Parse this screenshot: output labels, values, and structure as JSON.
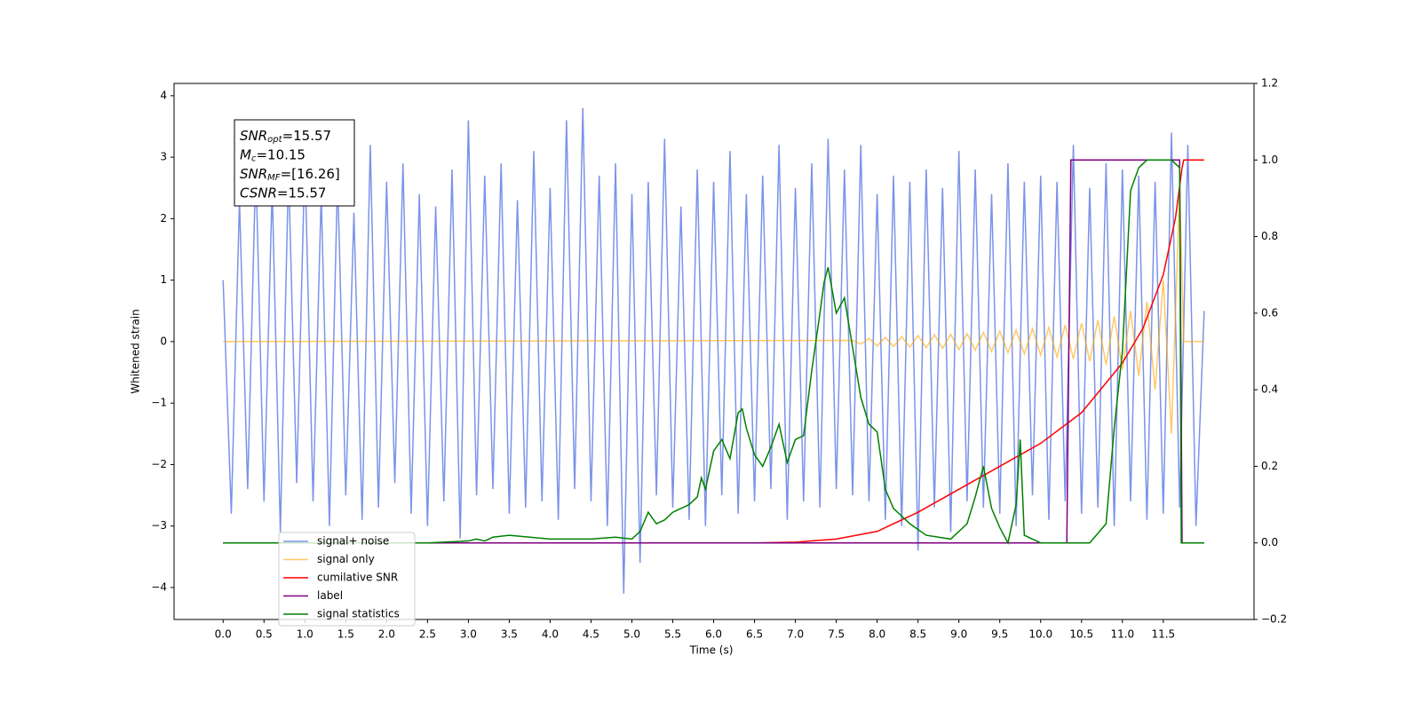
{
  "chart_data": {
    "type": "line",
    "xlabel": "Time (s)",
    "ylabel": "Whitened strain",
    "xlim": [
      -0.6,
      12.61
    ],
    "ylim": [
      -4.52,
      4.2
    ],
    "y2lim": [
      -0.2,
      1.2
    ],
    "xticks": [
      {
        "value": 0,
        "label": "0.0"
      },
      0.5,
      {
        "value": 1,
        "label": "1.0"
      },
      1.5,
      {
        "value": 2,
        "label": "2.0"
      },
      2.5,
      {
        "value": 3,
        "label": "3.0"
      },
      3.5,
      {
        "value": 4,
        "label": "4.0"
      },
      4.5,
      {
        "value": 5,
        "label": "5.0"
      },
      5.5,
      {
        "value": 6,
        "label": "6.0"
      },
      6.5,
      {
        "value": 7,
        "label": "7.0"
      },
      7.5,
      {
        "value": 8,
        "label": "8.0"
      },
      8.5,
      {
        "value": 9,
        "label": "9.0"
      },
      9.5,
      {
        "value": 10,
        "label": "10.0"
      },
      10.5,
      {
        "value": 11,
        "label": "11.0"
      },
      11.5
    ],
    "yticks": [
      {
        "value": -4,
        "label": "−4"
      },
      {
        "value": -3,
        "label": "−3"
      },
      {
        "value": -2,
        "label": "−2"
      },
      {
        "value": -1,
        "label": "−1"
      },
      0,
      1,
      2,
      3,
      4
    ],
    "y2ticks": [
      {
        "value": -0.2,
        "label": "−0.2"
      },
      {
        "value": 0,
        "label": "0.0"
      },
      0.2,
      0.4,
      0.6,
      0.8,
      {
        "value": 1,
        "label": "1.0"
      },
      1.2
    ],
    "annotations": [
      {
        "symbol": "SNR",
        "subscript": "opt",
        "text": "=15.57"
      },
      {
        "symbol": "M",
        "subscript": "c",
        "text": "=10.15"
      },
      {
        "symbol": "SNR",
        "subscript": "MF",
        "text": "=[16.26]"
      },
      {
        "symbol": "CSNR",
        "text": "=15.57"
      }
    ],
    "series": [
      {
        "name": "signal+ noise",
        "color": "#7b93e8",
        "x": [
          0,
          0.1,
          0.2,
          0.3,
          0.4,
          0.5,
          0.6,
          0.7,
          0.8,
          0.9,
          1,
          1.1,
          1.2,
          1.3,
          1.4,
          1.5,
          1.6,
          1.7,
          1.8,
          1.9,
          2,
          2.1,
          2.2,
          2.3,
          2.4,
          2.5,
          2.6,
          2.7,
          2.8,
          2.9,
          3,
          3.1,
          3.2,
          3.3,
          3.4,
          3.5,
          3.6,
          3.7,
          3.8,
          3.9,
          4,
          4.1,
          4.2,
          4.3,
          4.4,
          4.5,
          4.6,
          4.7,
          4.8,
          4.9,
          5,
          5.1,
          5.2,
          5.3,
          5.4,
          5.5,
          5.6,
          5.7,
          5.8,
          5.9,
          6,
          6.1,
          6.2,
          6.3,
          6.4,
          6.5,
          6.6,
          6.7,
          6.8,
          6.9,
          7,
          7.1,
          7.2,
          7.3,
          7.4,
          7.5,
          7.6,
          7.7,
          7.8,
          7.9,
          8,
          8.1,
          8.2,
          8.3,
          8.4,
          8.5,
          8.6,
          8.7,
          8.8,
          8.9,
          9,
          9.1,
          9.2,
          9.3,
          9.4,
          9.5,
          9.6,
          9.7,
          9.8,
          9.9,
          10,
          10.1,
          10.2,
          10.3,
          10.4,
          10.5,
          10.6,
          10.7,
          10.8,
          10.9,
          11,
          11.1,
          11.2,
          11.3,
          11.4,
          11.5,
          11.6,
          11.7,
          11.8,
          11.9,
          12
        ],
        "values": [
          1.0,
          -2.8,
          2.3,
          -2.4,
          2.9,
          -2.6,
          2.5,
          -3.1,
          2.8,
          -2.3,
          3.0,
          -2.6,
          2.4,
          -3.0,
          2.7,
          -2.5,
          2.1,
          -2.9,
          3.2,
          -2.7,
          2.6,
          -2.3,
          2.9,
          -2.8,
          2.4,
          -3.0,
          2.2,
          -2.6,
          2.8,
          -3.2,
          3.6,
          -2.5,
          2.7,
          -2.4,
          2.9,
          -2.8,
          2.3,
          -2.7,
          3.1,
          -2.6,
          2.5,
          -2.9,
          3.6,
          -2.4,
          3.8,
          -2.6,
          2.7,
          -3.0,
          2.9,
          -4.1,
          2.4,
          -3.6,
          2.6,
          -2.5,
          3.3,
          -2.7,
          2.2,
          -2.9,
          2.8,
          -3.0,
          2.6,
          -2.5,
          3.1,
          -2.8,
          2.4,
          -2.6,
          2.7,
          -2.4,
          3.2,
          -2.9,
          2.5,
          -2.6,
          2.9,
          -2.7,
          3.3,
          -2.4,
          2.8,
          -2.5,
          3.2,
          -2.6,
          2.4,
          -2.9,
          2.7,
          -3.0,
          2.6,
          -3.4,
          2.8,
          -2.7,
          2.5,
          -3.1,
          3.1,
          -2.6,
          2.8,
          -2.7,
          2.4,
          -2.8,
          2.9,
          -3.0,
          2.6,
          -2.5,
          2.7,
          -2.9,
          2.6,
          -2.6,
          3.2,
          -2.8,
          2.5,
          -2.7,
          2.9,
          -3.0,
          2.8,
          -2.6,
          2.7,
          -2.9,
          2.6,
          -2.8,
          3.4,
          -2.7,
          3.2,
          -3.0,
          0.5
        ]
      },
      {
        "name": "signal only",
        "color": "#ffa500",
        "x": [
          0,
          7.7,
          7.8,
          7.9,
          8,
          8.1,
          8.2,
          8.3,
          8.4,
          8.5,
          8.6,
          8.7,
          8.8,
          8.9,
          9,
          9.1,
          9.2,
          9.3,
          9.4,
          9.5,
          9.6,
          9.7,
          9.8,
          9.9,
          10,
          10.1,
          10.2,
          10.3,
          10.4,
          10.5,
          10.6,
          10.7,
          10.8,
          10.9,
          11,
          11.1,
          11.2,
          11.3,
          11.4,
          11.5,
          11.6,
          11.7,
          11.75,
          12
        ],
        "values": [
          0,
          0.02,
          -0.04,
          0.05,
          -0.07,
          0.07,
          -0.08,
          0.08,
          -0.09,
          0.1,
          -0.1,
          0.11,
          -0.11,
          0.12,
          -0.13,
          0.13,
          -0.14,
          0.15,
          -0.16,
          0.17,
          -0.18,
          0.19,
          -0.2,
          0.21,
          -0.22,
          0.23,
          -0.25,
          0.27,
          -0.28,
          0.3,
          -0.32,
          0.35,
          -0.38,
          0.41,
          -0.45,
          0.5,
          -0.56,
          0.65,
          -0.78,
          1.0,
          -1.5,
          2.5,
          0,
          0
        ]
      },
      {
        "name": "cumilative SNR",
        "color": "#ff0000",
        "axis": "y2",
        "x": [
          0,
          6.5,
          7,
          7.5,
          8,
          8.5,
          9,
          9.5,
          10,
          10.5,
          11,
          11.25,
          11.5,
          11.65,
          11.73,
          11.75,
          12
        ],
        "values": [
          0,
          0,
          0.002,
          0.01,
          0.03,
          0.08,
          0.14,
          0.2,
          0.26,
          0.34,
          0.47,
          0.56,
          0.7,
          0.85,
          0.98,
          1,
          1
        ]
      },
      {
        "name": "label",
        "color": "#800080",
        "axis": "y2",
        "x": [
          0,
          10.32,
          10.37,
          11.7,
          11.73,
          12
        ],
        "values": [
          0,
          0,
          1,
          1,
          0,
          0
        ]
      },
      {
        "name": "signal statistics",
        "color": "#008000",
        "axis": "y2",
        "x": [
          0,
          2.5,
          2.7,
          3.0,
          3.1,
          3.2,
          3.3,
          3.5,
          4.0,
          4.5,
          4.8,
          5.0,
          5.1,
          5.2,
          5.3,
          5.4,
          5.5,
          5.6,
          5.7,
          5.8,
          5.85,
          5.9,
          6.0,
          6.1,
          6.2,
          6.3,
          6.35,
          6.4,
          6.5,
          6.6,
          6.7,
          6.8,
          6.9,
          7.0,
          7.1,
          7.2,
          7.3,
          7.35,
          7.4,
          7.5,
          7.6,
          7.7,
          7.8,
          7.9,
          8.0,
          8.1,
          8.2,
          8.4,
          8.6,
          8.9,
          9.1,
          9.2,
          9.3,
          9.4,
          9.5,
          9.6,
          9.7,
          9.75,
          9.8,
          9.9,
          10.0,
          10.6,
          10.8,
          10.9,
          11.0,
          11.1,
          11.2,
          11.3,
          11.6,
          11.7,
          11.72,
          12
        ],
        "values": [
          0,
          0,
          0.002,
          0.005,
          0.01,
          0.005,
          0.015,
          0.02,
          0.01,
          0.01,
          0.015,
          0.01,
          0.03,
          0.08,
          0.05,
          0.06,
          0.08,
          0.09,
          0.1,
          0.12,
          0.17,
          0.14,
          0.24,
          0.27,
          0.22,
          0.34,
          0.35,
          0.3,
          0.23,
          0.2,
          0.25,
          0.31,
          0.21,
          0.27,
          0.28,
          0.45,
          0.6,
          0.68,
          0.72,
          0.6,
          0.64,
          0.51,
          0.38,
          0.31,
          0.29,
          0.14,
          0.09,
          0.05,
          0.02,
          0.01,
          0.05,
          0.12,
          0.2,
          0.09,
          0.04,
          0.0,
          0.1,
          0.27,
          0.02,
          0.01,
          0.0,
          0.0,
          0.05,
          0.3,
          0.5,
          0.92,
          0.98,
          1.0,
          1.0,
          0.98,
          0.0,
          0.0
        ]
      }
    ]
  }
}
